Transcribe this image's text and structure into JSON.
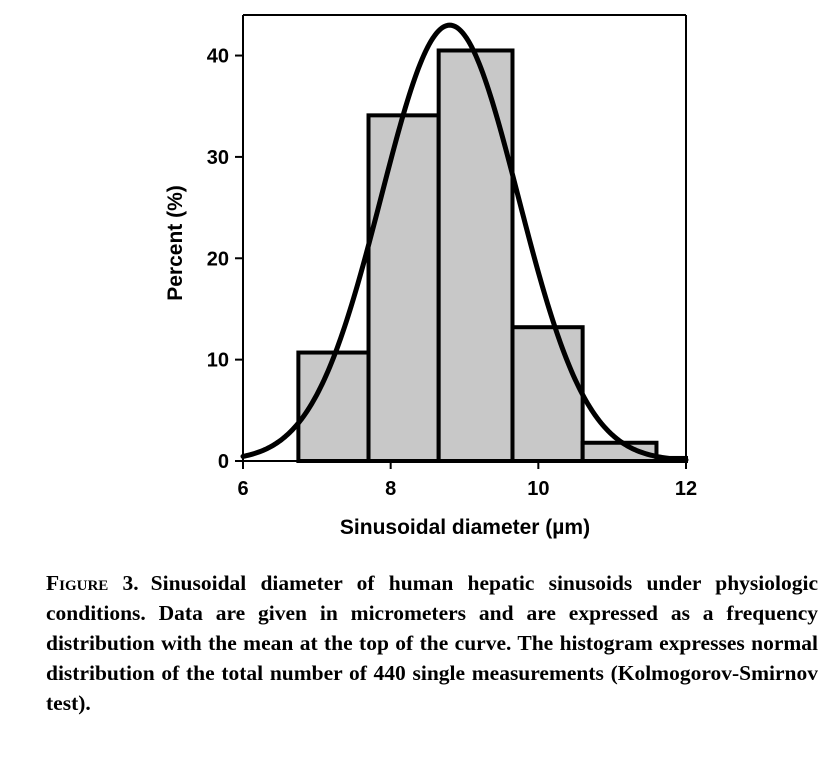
{
  "chart_data": {
    "type": "bar",
    "title": "",
    "xlabel": "Sinusoidal diameter (µm)",
    "ylabel": "Percent (%)",
    "xlim": [
      6,
      12
    ],
    "ylim": [
      0,
      44
    ],
    "xticks": [
      6,
      8,
      10,
      12
    ],
    "yticks": [
      0,
      10,
      20,
      30,
      40
    ],
    "grid": false,
    "bins": [
      {
        "start": 6.75,
        "end": 7.7,
        "value": 10.7
      },
      {
        "start": 7.7,
        "end": 8.65,
        "value": 34.1
      },
      {
        "start": 8.65,
        "end": 9.65,
        "value": 40.5
      },
      {
        "start": 9.65,
        "end": 10.6,
        "value": 13.2
      },
      {
        "start": 10.6,
        "end": 11.6,
        "value": 1.8
      },
      {
        "start": 11.6,
        "end": 12.0,
        "value": 0.3
      }
    ],
    "normal_curve": {
      "mean": 8.8,
      "peak": 43
    }
  },
  "caption": {
    "label": "Figure 3.",
    "text": "Sinusoidal diameter of human hepatic sinusoids under physiologic conditions. Data are given in micrometers and are expressed as a frequency distribution with the mean at the top of the curve. The histogram expresses normal distribution of the total number of 440 single measurements (Kolmogorov-Smirnov test)."
  }
}
